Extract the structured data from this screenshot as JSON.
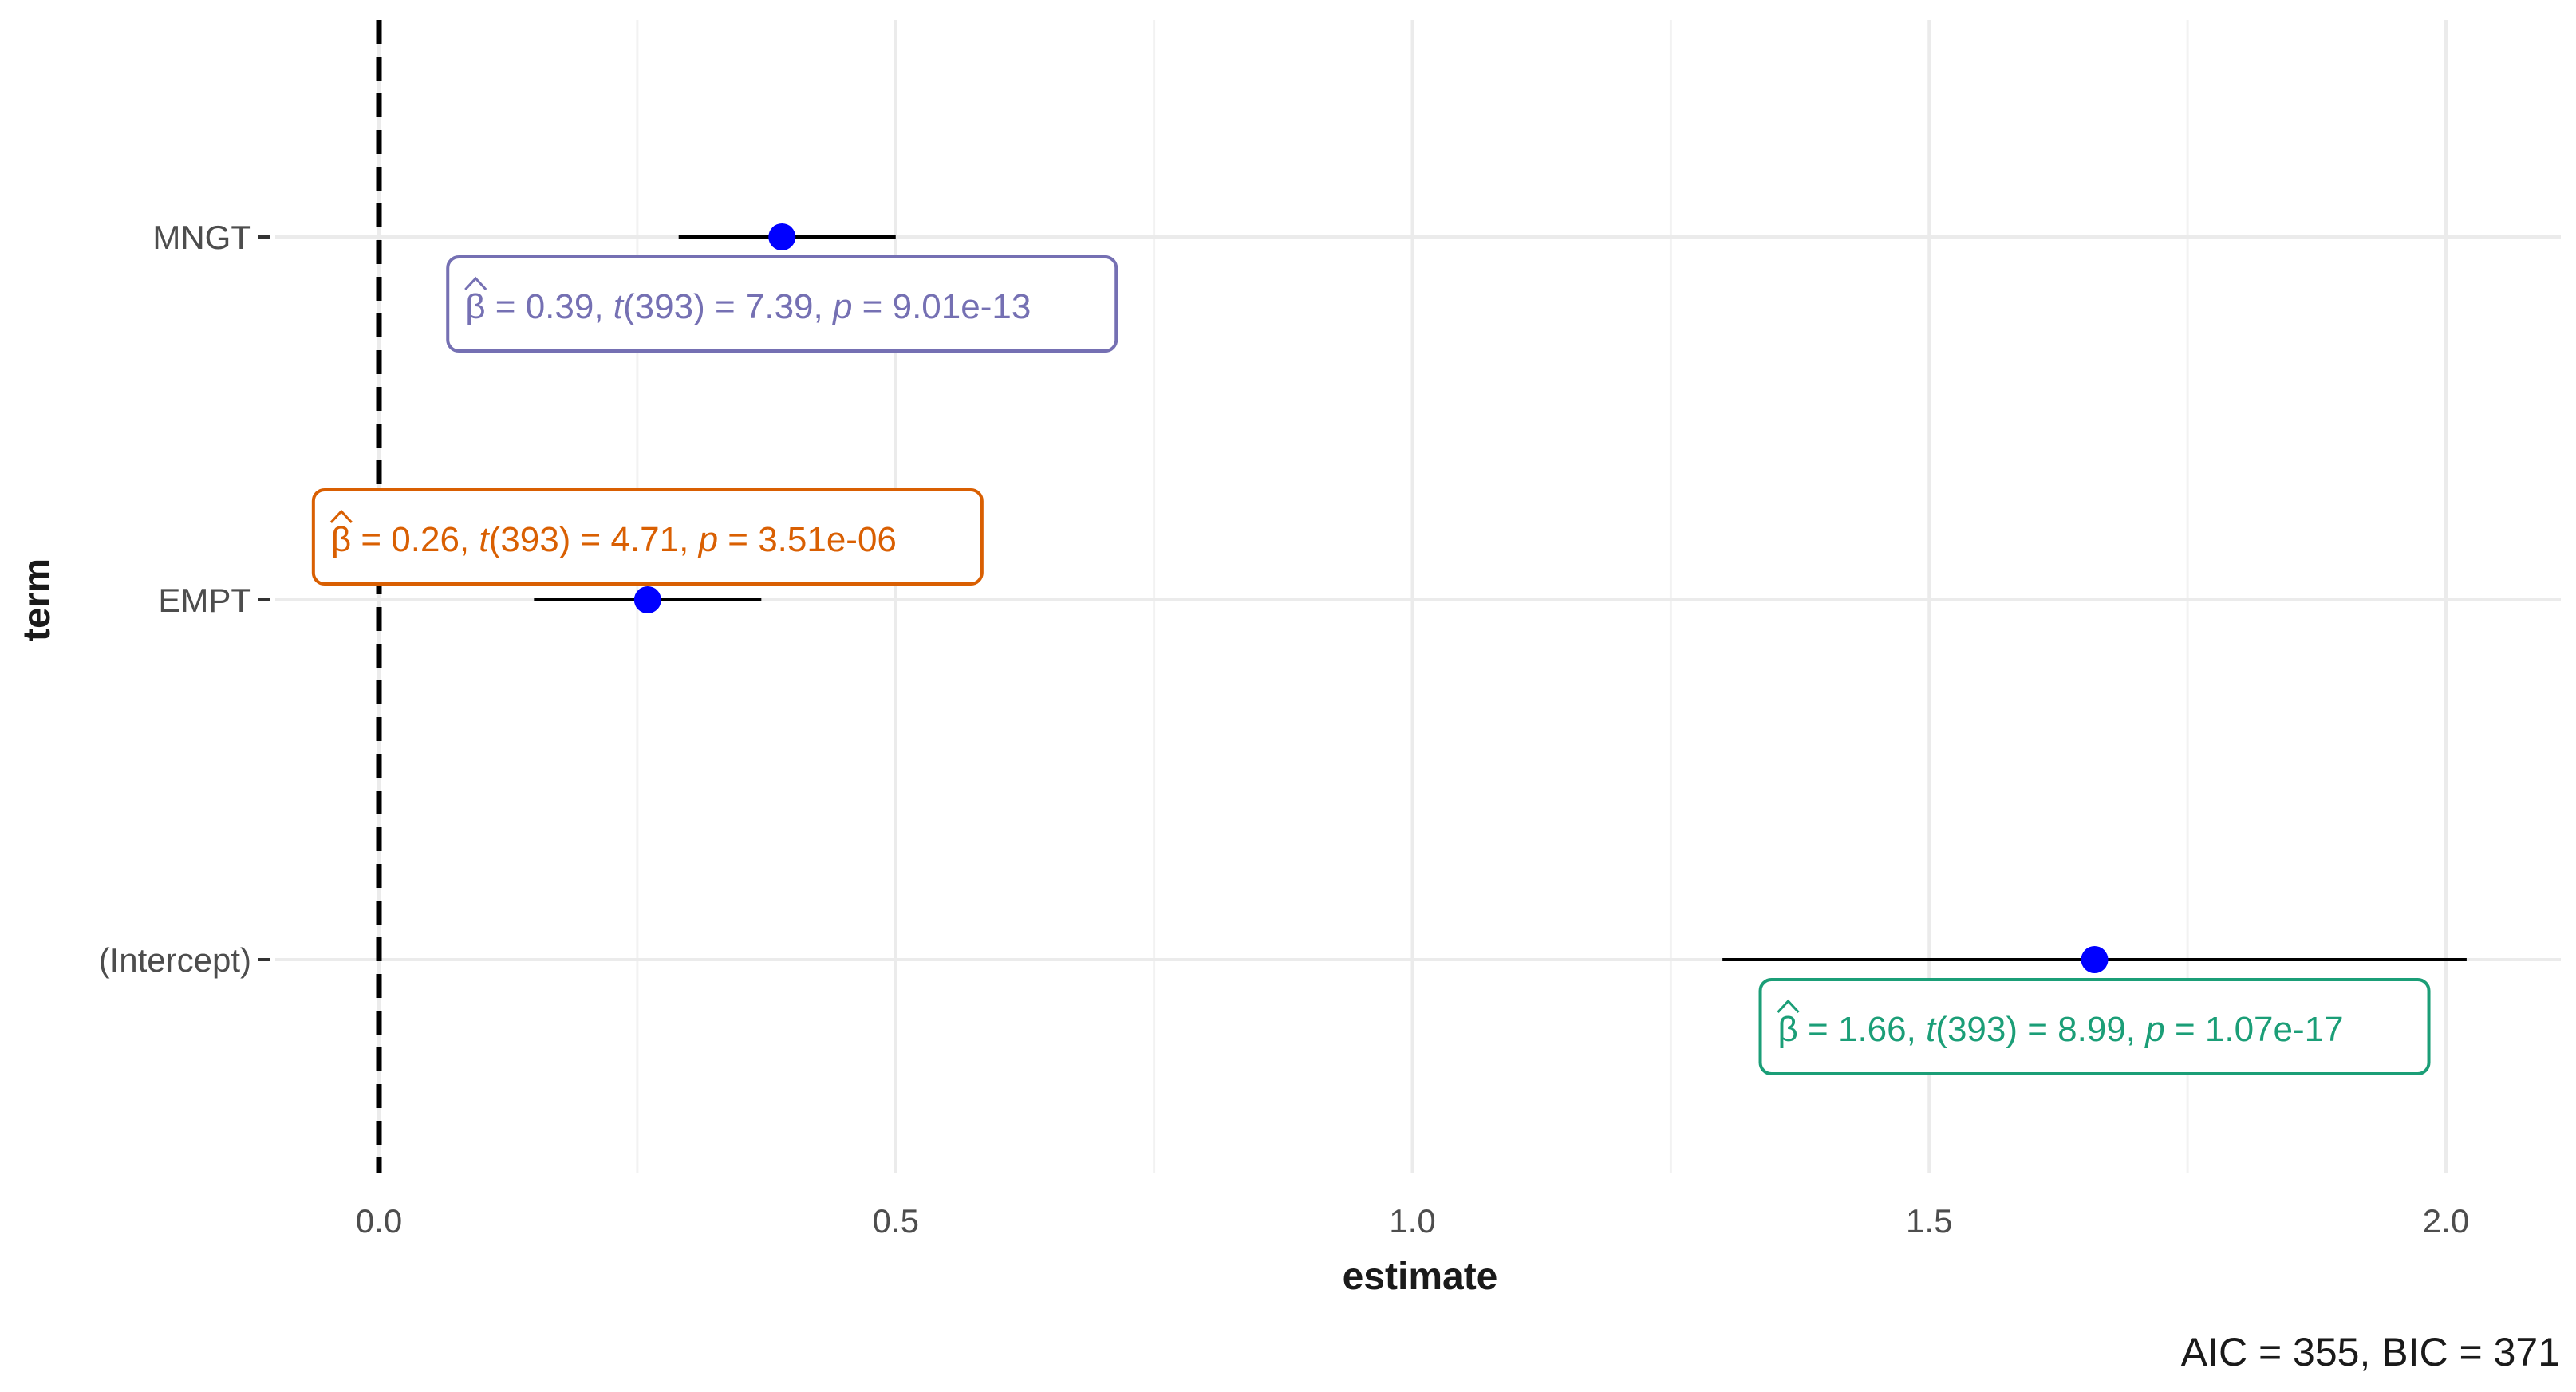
{
  "chart_data": {
    "type": "scatter",
    "subtype": "coefficient-plot",
    "xlabel": "estimate",
    "ylabel": "term",
    "xlim": [
      -0.1,
      2.1
    ],
    "xticks": [
      0.0,
      0.5,
      1.0,
      1.5,
      2.0
    ],
    "xtick_labels": [
      "0.0",
      "0.5",
      "1.0",
      "1.5",
      "2.0"
    ],
    "reference_line": 0,
    "grid": true,
    "terms": [
      "MNGT",
      "EMPT",
      "(Intercept)"
    ],
    "series": [
      {
        "values": [
          {
            "term": "MNGT",
            "estimate": 0.39,
            "conf_low": 0.29,
            "conf_high": 0.5
          },
          {
            "term": "EMPT",
            "estimate": 0.26,
            "conf_low": 0.15,
            "conf_high": 0.37
          },
          {
            "term": "(Intercept)",
            "estimate": 1.66,
            "conf_low": 1.3,
            "conf_high": 2.02
          }
        ]
      }
    ],
    "point_color": "#0000ff",
    "annotations": [
      {
        "term": "MNGT",
        "beta": "0.39",
        "df": "393",
        "t": "7.39",
        "p": "9.01e-13",
        "color": "#7570b3",
        "placement": "below"
      },
      {
        "term": "EMPT",
        "beta": "0.26",
        "df": "393",
        "t": "4.71",
        "p": "3.51e-06",
        "color": "#d95f02",
        "placement": "above"
      },
      {
        "term": "(Intercept)",
        "beta": "1.66",
        "df": "393",
        "t": "8.99",
        "p": "1.07e-17",
        "color": "#1b9e77",
        "placement": "below"
      }
    ],
    "caption": "AIC = 355, BIC = 371"
  }
}
